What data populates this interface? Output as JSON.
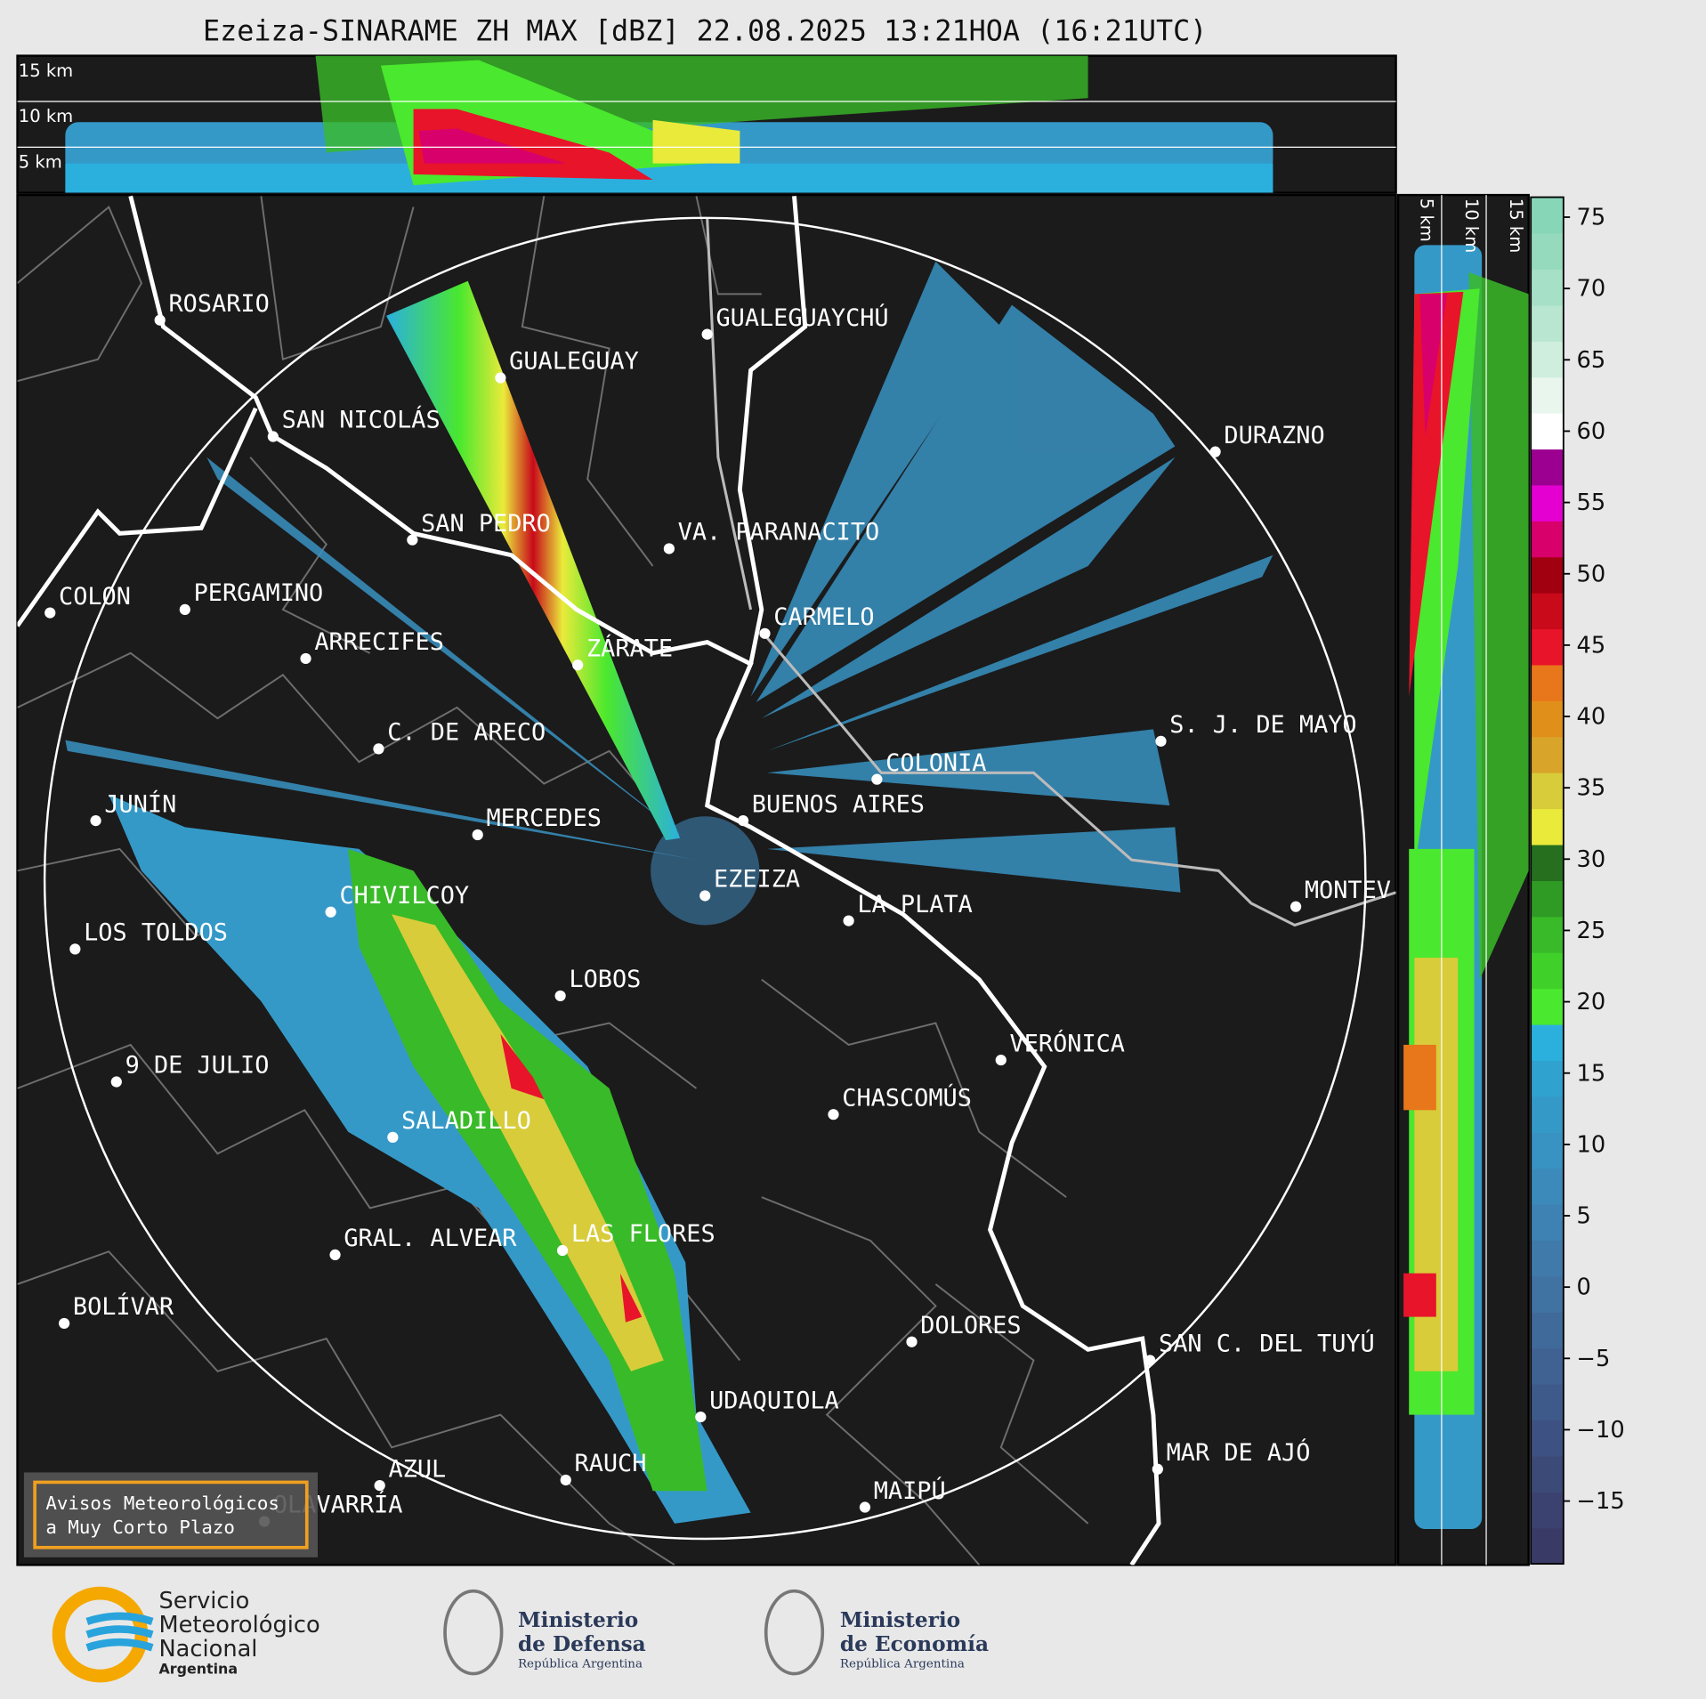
{
  "header": {
    "title": "Ezeiza-SINARAME ZH MAX [dBZ] 22.08.2025 13:21HOA (16:21UTC)"
  },
  "top_panel": {
    "altitudes": [
      "15 km",
      "10 km",
      "5 km"
    ]
  },
  "side_panel": {
    "altitudes": [
      "5 km",
      "10 km",
      "15 km"
    ]
  },
  "map": {
    "cities": [
      "ROSARIO",
      "GUALEGUAY",
      "GUALEGUAYCHÚ",
      "SAN NICOLÁS",
      "DURAZNO",
      "SAN PEDRO",
      "VA. PARANACITO",
      "COLON",
      "PERGAMINO",
      "CARMELO",
      "ARRECIFES",
      "ZÁRATE",
      "C. DE ARECO",
      "S. J. DE MAYO",
      "COLONIA",
      "BUENOS AIRES",
      "JUNÍN",
      "MERCEDES",
      "EZEIZA",
      "MONTEV",
      "LA PLATA",
      "CHIVILCOY",
      "LOS TOLDOS",
      "LOBOS",
      "VERÓNICA",
      "9 DE JULIO",
      "CHASCOMÚS",
      "SALADILLO",
      "GRAL. ALVEAR",
      "LAS FLORES",
      "BOLÍVAR",
      "DOLORES",
      "SAN C. DEL TUYÚ",
      "UDAQUIOLA",
      "MAR DE AJÓ",
      "AZUL",
      "RAUCH",
      "MAIPÚ",
      "OLAVARRÍA"
    ],
    "legend_box": [
      "Avisos Meteorológicos",
      "a Muy Corto Plazo"
    ]
  },
  "colorbar": {
    "lim": [
      -19.4,
      76.4
    ],
    "ticks": [
      {
        "value": -15,
        "label": "−15"
      },
      {
        "value": -10,
        "label": "−10"
      },
      {
        "value": -5,
        "label": "−5"
      },
      0,
      5,
      10,
      15,
      20,
      25,
      30,
      35,
      40,
      45,
      50,
      55,
      60,
      65,
      70,
      75
    ],
    "colors": [
      "#3a3a66",
      "#3b4270",
      "#3c4a78",
      "#3d5282",
      "#3e5a8a",
      "#3f6292",
      "#406a9a",
      "#4072a2",
      "#3f7aaa",
      "#3d82b2",
      "#3b8aba",
      "#3892c2",
      "#3599c8",
      "#30a2d0",
      "#2bb0de",
      "#4ae82e",
      "#3fd12a",
      "#39ba28",
      "#2f9a24",
      "#256f1e",
      "#eaea3a",
      "#d8cc3a",
      "#d8a52a",
      "#e0901a",
      "#e8761a",
      "#e8142a",
      "#c80a1a",
      "#a00010",
      "#d8006a",
      "#e400d0",
      "#9c0090",
      "#ffffff",
      "#e8f6ee",
      "#cfeedd",
      "#b8e6d0",
      "#a6e0c6",
      "#96dabe",
      "#88d6b8"
    ]
  },
  "footer": {
    "smn": [
      "Servicio",
      "Meteorológico",
      "Nacional",
      "Argentina"
    ],
    "defensa": [
      "Ministerio",
      "de Defensa",
      "República Argentina"
    ],
    "economia": [
      "Ministerio",
      "de Economía",
      "República Argentina"
    ]
  }
}
